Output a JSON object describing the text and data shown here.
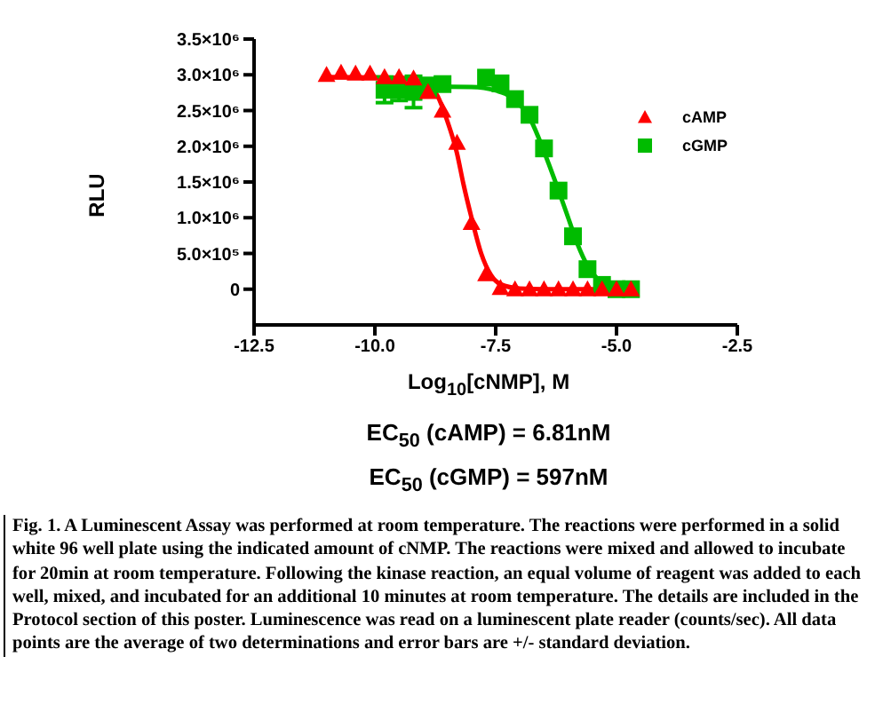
{
  "chart_data": {
    "type": "scatter",
    "xlabel": "Log$_{10}$[cNMP], M",
    "ylabel": "RLU",
    "xlim": [
      -12.5,
      -2.5
    ],
    "xticks": [
      -12.5,
      {
        "value": -10,
        "label": "-10.0"
      },
      -7.5,
      {
        "value": -5,
        "label": "-5.0"
      },
      -2.5
    ],
    "ylim": [
      -500000,
      3500000
    ],
    "yticks": [
      {
        "value": 0,
        "label": "0"
      },
      {
        "value": 500000,
        "label": "5.0×10⁵"
      },
      {
        "value": 1000000,
        "label": "1.0×10⁶"
      },
      {
        "value": 1500000,
        "label": "1.5×10⁶"
      },
      {
        "value": 2000000,
        "label": "2.0×10⁶"
      },
      {
        "value": 2500000,
        "label": "2.5×10⁶"
      },
      {
        "value": 3000000,
        "label": "3.0×10⁶"
      },
      {
        "value": 3500000,
        "label": "3.5×10⁶"
      }
    ],
    "legend": "top right",
    "grid": false,
    "series": [
      {
        "name": "cAMP",
        "marker": "triangle",
        "color": "#ff0000",
        "x": [
          -11,
          -10.7,
          -10.4,
          -10.1,
          -9.8,
          -9.5,
          -9.2,
          -8.9,
          -8.6,
          -8.3,
          -8.0,
          -7.7,
          -7.4,
          -7.1,
          -6.8,
          -6.5,
          -6.2,
          -5.9,
          -5.6,
          -5.3,
          -5.0,
          -4.7
        ],
        "values": [
          3000000,
          3030000,
          3020000,
          3020000,
          2970000,
          2970000,
          2950000,
          2760000,
          2500000,
          2050000,
          930000,
          210000,
          20000,
          0,
          0,
          0,
          0,
          0,
          0,
          0,
          0,
          0
        ]
      },
      {
        "name": "cGMP",
        "marker": "square",
        "color": "#00bb00",
        "x": [
          -9.8,
          -9.5,
          -9.2,
          -8.9,
          -8.6,
          -7.7,
          -7.4,
          -7.1,
          -6.8,
          -6.5,
          -6.2,
          -5.9,
          -5.6,
          -5.3,
          -5.0,
          -4.7
        ],
        "values": [
          2790000,
          2790000,
          2760000,
          2830000,
          2870000,
          2960000,
          2880000,
          2660000,
          2440000,
          1970000,
          1380000,
          740000,
          280000,
          60000,
          0,
          0
        ],
        "errors": [
          180000,
          150000,
          220000,
          120000,
          null,
          null,
          null,
          null,
          null,
          null,
          null,
          null,
          null,
          null,
          null,
          null
        ]
      },
      {
        "type": "line",
        "color": "#ff0000",
        "x": [
          -11,
          -9.5,
          -9.0,
          -8.7,
          -8.5,
          -8.3,
          -8.17,
          -8.0,
          -7.8,
          -7.6,
          -7.4,
          -7.0,
          -6.5,
          -4.7
        ],
        "values": [
          2970000,
          2960000,
          2900000,
          2700000,
          2350000,
          1900000,
          1480000,
          1000000,
          500000,
          200000,
          70000,
          10000,
          0,
          0
        ]
      },
      {
        "type": "line",
        "color": "#00bb00",
        "x": [
          -9.8,
          -8.0,
          -7.5,
          -7.2,
          -7.0,
          -6.8,
          -6.6,
          -6.4,
          -6.22,
          -6.0,
          -5.8,
          -5.6,
          -5.4,
          -5.2,
          -5.0,
          -4.7
        ],
        "values": [
          2840000,
          2830000,
          2780000,
          2700000,
          2580000,
          2400000,
          2100000,
          1750000,
          1420000,
          1000000,
          620000,
          330000,
          150000,
          60000,
          20000,
          0
        ]
      }
    ],
    "annotations": [
      "EC$_{50}$ (cAMP) = 6.81nM",
      "EC$_{50}$ (cGMP) = 597nM",
      "Fig. 1.  A Luminescent Assay was performed at room temperature. The reactions were performed in a solid white 96 well plate using the indicated amount of cNMP. The reactions were mixed and allowed to incubate for 20min at room temperature. Following the kinase reaction, an equal volume of reagent was added to each well, mixed, and incubated for an additional 10 minutes at room temperature. The details are included in the Protocol section of this poster. Luminescence was read on a luminescent plate reader (counts/sec). All data points are the average of two determinations and error bars are +/- standard deviation."
    ]
  }
}
